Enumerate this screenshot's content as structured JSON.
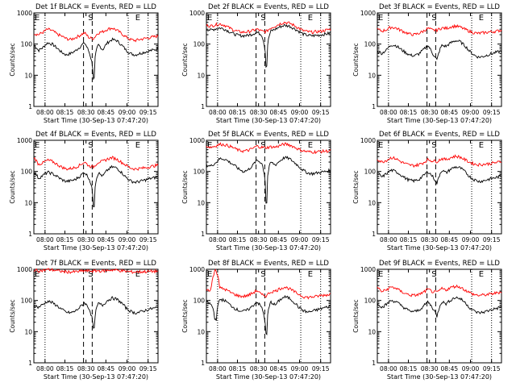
{
  "chart_data": [
    {
      "type": "line",
      "title": "Det 1f BLACK = Events, RED = LLD",
      "xlabel": "Start Time (30-Sep-13 07:47:20)",
      "ylabel": "Counts/sec",
      "xticks": [
        "08:00",
        "08:15",
        "08:30",
        "08:45",
        "09:00",
        "09:15"
      ],
      "yticks": [
        "1",
        "10",
        "100",
        "1000"
      ],
      "yscale": "log",
      "ylim": [
        1,
        1000
      ],
      "markers": [
        "E",
        "S",
        "E"
      ],
      "series": [
        {
          "color": "#000000",
          "values": [
            95,
            62,
            78,
            110,
            100,
            75,
            55,
            45,
            50,
            60,
            80,
            110,
            55,
            8,
            95,
            65,
            110,
            140,
            130,
            95,
            65,
            50,
            45,
            50,
            55,
            60,
            65,
            70
          ]
        },
        {
          "color": "#ff0000",
          "values": [
            220,
            200,
            240,
            300,
            270,
            210,
            180,
            150,
            140,
            160,
            190,
            230,
            160,
            150,
            230,
            250,
            300,
            330,
            280,
            220,
            170,
            140,
            130,
            140,
            150,
            160,
            170,
            180
          ]
        }
      ]
    },
    {
      "type": "line",
      "title": "Det 2f BLACK = Events, RED = LLD",
      "xlabel": "Start Time (30-Sep-13 07:47:20)",
      "ylabel": "Counts/sec",
      "xticks": [
        "08:00",
        "08:15",
        "08:30",
        "08:45",
        "09:00",
        "09:15"
      ],
      "yticks": [
        "1",
        "10",
        "100",
        "1000"
      ],
      "yscale": "log",
      "ylim": [
        1,
        1000
      ],
      "markers": [
        "E",
        "S",
        "E"
      ],
      "series": [
        {
          "color": "#000000",
          "values": [
            300,
            280,
            310,
            330,
            300,
            250,
            210,
            190,
            185,
            190,
            210,
            240,
            200,
            20,
            260,
            300,
            360,
            400,
            380,
            320,
            260,
            210,
            190,
            185,
            190,
            200,
            210,
            230
          ]
        },
        {
          "color": "#ff0000",
          "values": [
            400,
            380,
            420,
            440,
            400,
            330,
            280,
            250,
            240,
            250,
            270,
            300,
            260,
            250,
            330,
            380,
            450,
            500,
            470,
            400,
            330,
            270,
            250,
            240,
            250,
            260,
            280,
            300
          ]
        }
      ]
    },
    {
      "type": "line",
      "title": "Det 3f BLACK = Events, RED = LLD",
      "xlabel": "Start Time (30-Sep-13 07:47:20)",
      "ylabel": "Counts/sec",
      "xticks": [
        "08:00",
        "08:15",
        "08:30",
        "08:45",
        "09:00",
        "09:15"
      ],
      "yticks": [
        "1",
        "10",
        "100",
        "1000"
      ],
      "yscale": "log",
      "ylim": [
        1,
        1000
      ],
      "markers": [
        "E",
        "S",
        "E"
      ],
      "series": [
        {
          "color": "#000000",
          "values": [
            60,
            50,
            65,
            95,
            90,
            70,
            55,
            45,
            42,
            48,
            65,
            90,
            50,
            30,
            90,
            85,
            110,
            130,
            120,
            90,
            60,
            45,
            38,
            40,
            45,
            50,
            55,
            60
          ]
        },
        {
          "color": "#ff0000",
          "values": [
            300,
            260,
            290,
            350,
            330,
            280,
            240,
            210,
            200,
            220,
            260,
            320,
            280,
            280,
            330,
            320,
            360,
            380,
            350,
            300,
            260,
            230,
            220,
            230,
            240,
            250,
            260,
            280
          ]
        }
      ]
    },
    {
      "type": "line",
      "title": "Det 4f BLACK = Events, RED = LLD",
      "xlabel": "Start Time (30-Sep-13 07:47:20)",
      "ylabel": "Counts/sec",
      "xticks": [
        "08:00",
        "08:15",
        "08:30",
        "08:45",
        "09:00",
        "09:15"
      ],
      "yticks": [
        "1",
        "10",
        "100",
        "1000"
      ],
      "yscale": "log",
      "ylim": [
        1,
        1000
      ],
      "markers": [
        "E",
        "S",
        "E"
      ],
      "series": [
        {
          "color": "#000000",
          "values": [
            100,
            60,
            75,
            95,
            85,
            70,
            55,
            48,
            50,
            55,
            70,
            95,
            60,
            8,
            90,
            70,
            110,
            140,
            130,
            95,
            65,
            50,
            45,
            48,
            52,
            58,
            62,
            68
          ]
        },
        {
          "color": "#ff0000",
          "values": [
            280,
            170,
            190,
            230,
            210,
            170,
            140,
            120,
            125,
            135,
            160,
            200,
            150,
            140,
            200,
            210,
            250,
            280,
            250,
            200,
            160,
            130,
            120,
            125,
            130,
            140,
            150,
            160
          ]
        }
      ]
    },
    {
      "type": "line",
      "title": "Det 5f BLACK = Events, RED = LLD",
      "xlabel": "Start Time (30-Sep-13 07:47:20)",
      "ylabel": "Counts/sec",
      "xticks": [
        "08:00",
        "08:15",
        "08:30",
        "08:45",
        "09:00",
        "09:15"
      ],
      "yticks": [
        "1",
        "10",
        "100",
        "1000"
      ],
      "yscale": "log",
      "ylim": [
        1,
        1000
      ],
      "markers": [
        "E",
        "S",
        "E"
      ],
      "series": [
        {
          "color": "#000000",
          "values": [
            160,
            150,
            190,
            260,
            250,
            200,
            160,
            120,
            100,
            110,
            150,
            230,
            190,
            10,
            200,
            160,
            220,
            280,
            260,
            200,
            150,
            110,
            90,
            85,
            90,
            95,
            100,
            110
          ]
        },
        {
          "color": "#ff0000",
          "values": [
            650,
            600,
            660,
            750,
            720,
            650,
            560,
            480,
            450,
            470,
            540,
            650,
            600,
            580,
            620,
            600,
            680,
            760,
            720,
            620,
            520,
            460,
            430,
            420,
            430,
            440,
            450,
            460
          ]
        }
      ]
    },
    {
      "type": "line",
      "title": "Det 6f BLACK = Events, RED = LLD",
      "xlabel": "Start Time (30-Sep-13 07:47:20)",
      "ylabel": "Counts/sec",
      "xticks": [
        "08:00",
        "08:15",
        "08:30",
        "08:45",
        "09:00",
        "09:15"
      ],
      "yticks": [
        "1",
        "10",
        "100",
        "1000"
      ],
      "yscale": "log",
      "ylim": [
        1,
        1000
      ],
      "markers": [
        "E",
        "S",
        "E"
      ],
      "series": [
        {
          "color": "#000000",
          "values": [
            90,
            65,
            85,
            110,
            100,
            80,
            62,
            52,
            50,
            55,
            72,
            100,
            70,
            40,
            110,
            90,
            120,
            140,
            130,
            100,
            70,
            55,
            48,
            50,
            55,
            60,
            65,
            72
          ]
        },
        {
          "color": "#ff0000",
          "values": [
            250,
            200,
            230,
            280,
            260,
            210,
            180,
            160,
            155,
            165,
            190,
            240,
            220,
            210,
            260,
            240,
            280,
            310,
            290,
            240,
            200,
            175,
            165,
            170,
            175,
            185,
            195,
            210
          ]
        }
      ]
    },
    {
      "type": "line",
      "title": "Det 7f BLACK = Events, RED = LLD",
      "xlabel": "Start Time (30-Sep-13 07:47:20)",
      "ylabel": "Counts/sec",
      "xticks": [
        "08:00",
        "08:15",
        "08:30",
        "08:45",
        "09:00",
        "09:15"
      ],
      "yticks": [
        "1",
        "10",
        "100",
        "1000"
      ],
      "yscale": "log",
      "ylim": [
        1,
        1000
      ],
      "markers": [
        "E",
        "S",
        "E"
      ],
      "series": [
        {
          "color": "#000000",
          "values": [
            70,
            60,
            75,
            95,
            85,
            68,
            52,
            42,
            40,
            45,
            60,
            85,
            55,
            12,
            80,
            70,
            100,
            120,
            110,
            85,
            58,
            45,
            40,
            42,
            47,
            52,
            56,
            60
          ]
        },
        {
          "color": "#ff0000",
          "values": [
            950,
            900,
            920,
            980,
            960,
            900,
            860,
            830,
            820,
            830,
            860,
            900,
            880,
            880,
            900,
            880,
            920,
            960,
            940,
            900,
            860,
            830,
            820,
            830,
            840,
            850,
            860,
            880
          ]
        }
      ]
    },
    {
      "type": "line",
      "title": "Det 8f BLACK = Events, RED = LLD",
      "xlabel": "Start Time (30-Sep-13 07:47:20)",
      "ylabel": "Counts/sec",
      "xticks": [
        "08:00",
        "08:15",
        "08:30",
        "08:45",
        "09:00",
        "09:15"
      ],
      "yticks": [
        "1",
        "10",
        "100",
        "1000"
      ],
      "yscale": "log",
      "ylim": [
        1,
        1000
      ],
      "markers": [
        "E",
        "S",
        "E"
      ],
      "series": [
        {
          "color": "#000000",
          "values": [
            90,
            75,
            25,
            110,
            100,
            75,
            58,
            48,
            45,
            50,
            65,
            90,
            60,
            8,
            90,
            70,
            105,
            130,
            120,
            90,
            62,
            48,
            42,
            45,
            50,
            55,
            60,
            65
          ]
        },
        {
          "color": "#ff0000",
          "values": [
            220,
            220,
            1000,
            250,
            230,
            190,
            160,
            140,
            135,
            145,
            170,
            210,
            150,
            140,
            190,
            200,
            240,
            270,
            240,
            195,
            160,
            135,
            125,
            130,
            135,
            145,
            150,
            160
          ]
        }
      ]
    },
    {
      "type": "line",
      "title": "Det 9f BLACK = Events, RED = LLD",
      "xlabel": "Start Time (30-Sep-13 07:47:20)",
      "ylabel": "Counts/sec",
      "xticks": [
        "08:00",
        "08:15",
        "08:30",
        "08:45",
        "09:00",
        "09:15"
      ],
      "yticks": [
        "1",
        "10",
        "100",
        "1000"
      ],
      "yscale": "log",
      "ylim": [
        1,
        1000
      ],
      "markers": [
        "E",
        "S",
        "E"
      ],
      "series": [
        {
          "color": "#000000",
          "values": [
            85,
            60,
            75,
            100,
            92,
            72,
            56,
            46,
            44,
            48,
            64,
            90,
            58,
            30,
            92,
            78,
            105,
            125,
            115,
            88,
            60,
            46,
            40,
            42,
            46,
            52,
            56,
            62
          ]
        },
        {
          "color": "#ff0000",
          "values": [
            260,
            190,
            220,
            270,
            250,
            200,
            170,
            150,
            145,
            155,
            180,
            230,
            190,
            180,
            240,
            220,
            260,
            290,
            270,
            220,
            180,
            155,
            145,
            150,
            155,
            165,
            175,
            190
          ]
        }
      ]
    }
  ]
}
